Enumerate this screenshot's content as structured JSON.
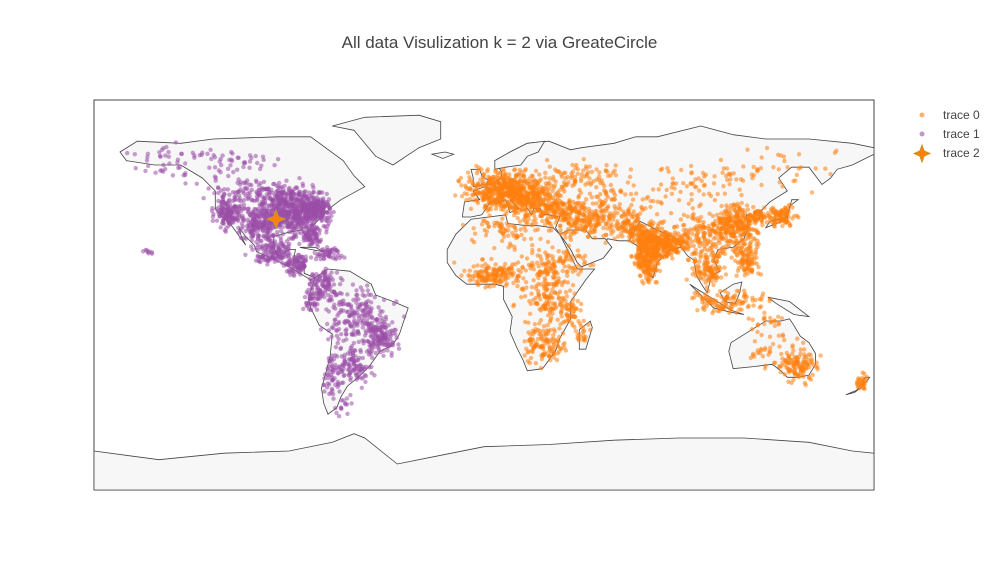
{
  "title": "All data Visulization k = 2 via GreateCircle",
  "colors": {
    "trace0": "#ff7f0e",
    "trace1": "#9b4fa8",
    "trace2": "#ff7f0e",
    "trace2_outline": "#c8962a",
    "land": "#f7f7f7",
    "coast": "#444444"
  },
  "legend": {
    "items": [
      {
        "label": "trace 0",
        "symbol": "dot"
      },
      {
        "label": "trace 1",
        "symbol": "dot"
      },
      {
        "label": "trace 2",
        "symbol": "star"
      }
    ]
  },
  "chart_data": {
    "type": "scatter",
    "projection": "equirectangular",
    "series": [
      {
        "name": "trace 0",
        "color": "#ff7f0e",
        "opacity": 0.55,
        "note_regions": [
          "Europe",
          "Africa",
          "Middle East",
          "South Asia",
          "East Asia",
          "Southeast Asia",
          "Oceania"
        ]
      },
      {
        "name": "trace 1",
        "color": "#9b4fa8",
        "opacity": 0.55,
        "note_regions": [
          "North America",
          "Central America",
          "Caribbean",
          "South America"
        ]
      },
      {
        "name": "trace 2",
        "color": "#ff7f0e",
        "marker": "star",
        "lon": -96,
        "lat": 35
      }
    ]
  }
}
